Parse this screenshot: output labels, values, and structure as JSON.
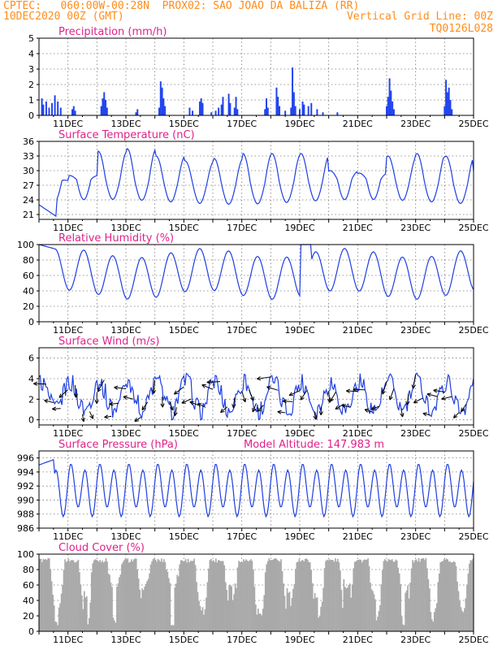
{
  "header": {
    "line1_left": "CPTEC:   060:00W-00:28N  PROX02: SAO JOAO DA BALIZA (RR)",
    "line2_left": "10DEC2020 00Z (GMT)",
    "line2_right": "Vertical Grid Line: 00Z",
    "line3_right": "TQ0126L028"
  },
  "colors": {
    "header": "#ff8c1a",
    "title": "#e0218a",
    "series": "#1f3fe0",
    "bars": "#2244ee",
    "cloud": "#a9a9a9",
    "arrow": "#000000"
  },
  "x_axis": {
    "ticks": [
      {
        "day": 11,
        "label": "11DEC"
      },
      {
        "day": 13,
        "label": "13DEC"
      },
      {
        "day": 15,
        "label": "15DEC"
      },
      {
        "day": 17,
        "label": "17DEC"
      },
      {
        "day": 19,
        "label": "19DEC"
      },
      {
        "day": 21,
        "label": "21DEC"
      },
      {
        "day": 23,
        "label": "23DEC"
      },
      {
        "day": 25,
        "label": "25DEC"
      }
    ],
    "range": [
      10,
      25
    ]
  },
  "chart_data": [
    {
      "id": "precip",
      "type": "bar",
      "title": "Precipitation (mm/h)",
      "ylim": [
        0,
        5
      ],
      "yticks": [
        0,
        1,
        2,
        3,
        4,
        5
      ],
      "grid": true,
      "events": [
        [
          10.1,
          1.1
        ],
        [
          10.15,
          0.7
        ],
        [
          10.25,
          0.9
        ],
        [
          10.35,
          0.5
        ],
        [
          10.45,
          0.8
        ],
        [
          10.55,
          1.3
        ],
        [
          10.65,
          0.9
        ],
        [
          10.75,
          0.5
        ],
        [
          11.15,
          0.4
        ],
        [
          11.2,
          0.6
        ],
        [
          11.25,
          0.3
        ],
        [
          12.15,
          0.6
        ],
        [
          12.2,
          1.1
        ],
        [
          12.25,
          1.5
        ],
        [
          12.3,
          1.0
        ],
        [
          12.35,
          0.5
        ],
        [
          13.35,
          0.2
        ],
        [
          13.4,
          0.4
        ],
        [
          14.15,
          0.5
        ],
        [
          14.2,
          2.2
        ],
        [
          14.25,
          1.8
        ],
        [
          14.3,
          1.1
        ],
        [
          14.35,
          0.6
        ],
        [
          15.2,
          0.5
        ],
        [
          15.3,
          0.3
        ],
        [
          15.55,
          0.9
        ],
        [
          15.6,
          1.1
        ],
        [
          15.65,
          0.8
        ],
        [
          15.95,
          0.2
        ],
        [
          16.1,
          0.3
        ],
        [
          16.2,
          0.5
        ],
        [
          16.3,
          0.7
        ],
        [
          16.35,
          1.2
        ],
        [
          16.55,
          1.4
        ],
        [
          16.6,
          0.8
        ],
        [
          16.75,
          0.5
        ],
        [
          16.8,
          1.2
        ],
        [
          16.85,
          0.4
        ],
        [
          17.8,
          0.4
        ],
        [
          17.85,
          1.1
        ],
        [
          17.9,
          0.5
        ],
        [
          18.2,
          1.8
        ],
        [
          18.25,
          1.2
        ],
        [
          18.3,
          0.6
        ],
        [
          18.5,
          0.3
        ],
        [
          18.7,
          0.5
        ],
        [
          18.75,
          3.1
        ],
        [
          18.8,
          1.5
        ],
        [
          18.85,
          0.6
        ],
        [
          19.0,
          0.4
        ],
        [
          19.1,
          0.9
        ],
        [
          19.15,
          0.7
        ],
        [
          19.3,
          0.6
        ],
        [
          19.4,
          0.8
        ],
        [
          19.6,
          0.4
        ],
        [
          19.8,
          0.2
        ],
        [
          20.3,
          0.2
        ],
        [
          22.0,
          0.6
        ],
        [
          22.05,
          1.2
        ],
        [
          22.1,
          2.4
        ],
        [
          22.15,
          1.6
        ],
        [
          22.2,
          0.9
        ],
        [
          22.25,
          0.4
        ],
        [
          24.0,
          0.6
        ],
        [
          24.05,
          2.3
        ],
        [
          24.1,
          1.5
        ],
        [
          24.15,
          1.8
        ],
        [
          24.2,
          1.0
        ],
        [
          24.25,
          0.4
        ]
      ]
    },
    {
      "id": "temp",
      "type": "line",
      "title": "Surface Temperature (nC)",
      "ylim": [
        20,
        36
      ],
      "yticks": [
        21,
        24,
        27,
        30,
        33,
        36
      ],
      "grid": true,
      "period_min": 22.5,
      "amplitude": [
        28,
        29,
        34,
        34.5,
        33,
        32,
        32.5,
        33.5,
        33.5,
        33.5,
        30,
        29.5,
        33,
        33.5,
        33,
        30,
        33.5,
        33,
        32,
        32.5,
        33,
        30.5,
        32.5,
        32.5,
        31.5,
        33,
        31,
        31,
        30.5,
        32
      ]
    },
    {
      "id": "rh",
      "type": "line",
      "title": "Relative Humidity (%)",
      "ylim": [
        0,
        100
      ],
      "yticks": [
        0,
        20,
        40,
        60,
        80,
        100
      ],
      "grid": true
    },
    {
      "id": "wind",
      "type": "line",
      "title": "Surface Wind (m/s)",
      "ylim": [
        -0.5,
        7
      ],
      "yticks": [
        0,
        2,
        4,
        6
      ],
      "grid": true,
      "vectors": true
    },
    {
      "id": "pres",
      "type": "line",
      "title": "Surface Pressure (hPa)",
      "annotation": "Model Altitude: 147.983 m",
      "ylim": [
        986,
        997
      ],
      "yticks": [
        986,
        988,
        990,
        992,
        994,
        996
      ],
      "grid": true
    },
    {
      "id": "cloud",
      "type": "area",
      "title": "Cloud Cover (%)",
      "ylim": [
        0,
        100
      ],
      "yticks": [
        0,
        20,
        40,
        60,
        80,
        100
      ],
      "grid": true
    }
  ]
}
